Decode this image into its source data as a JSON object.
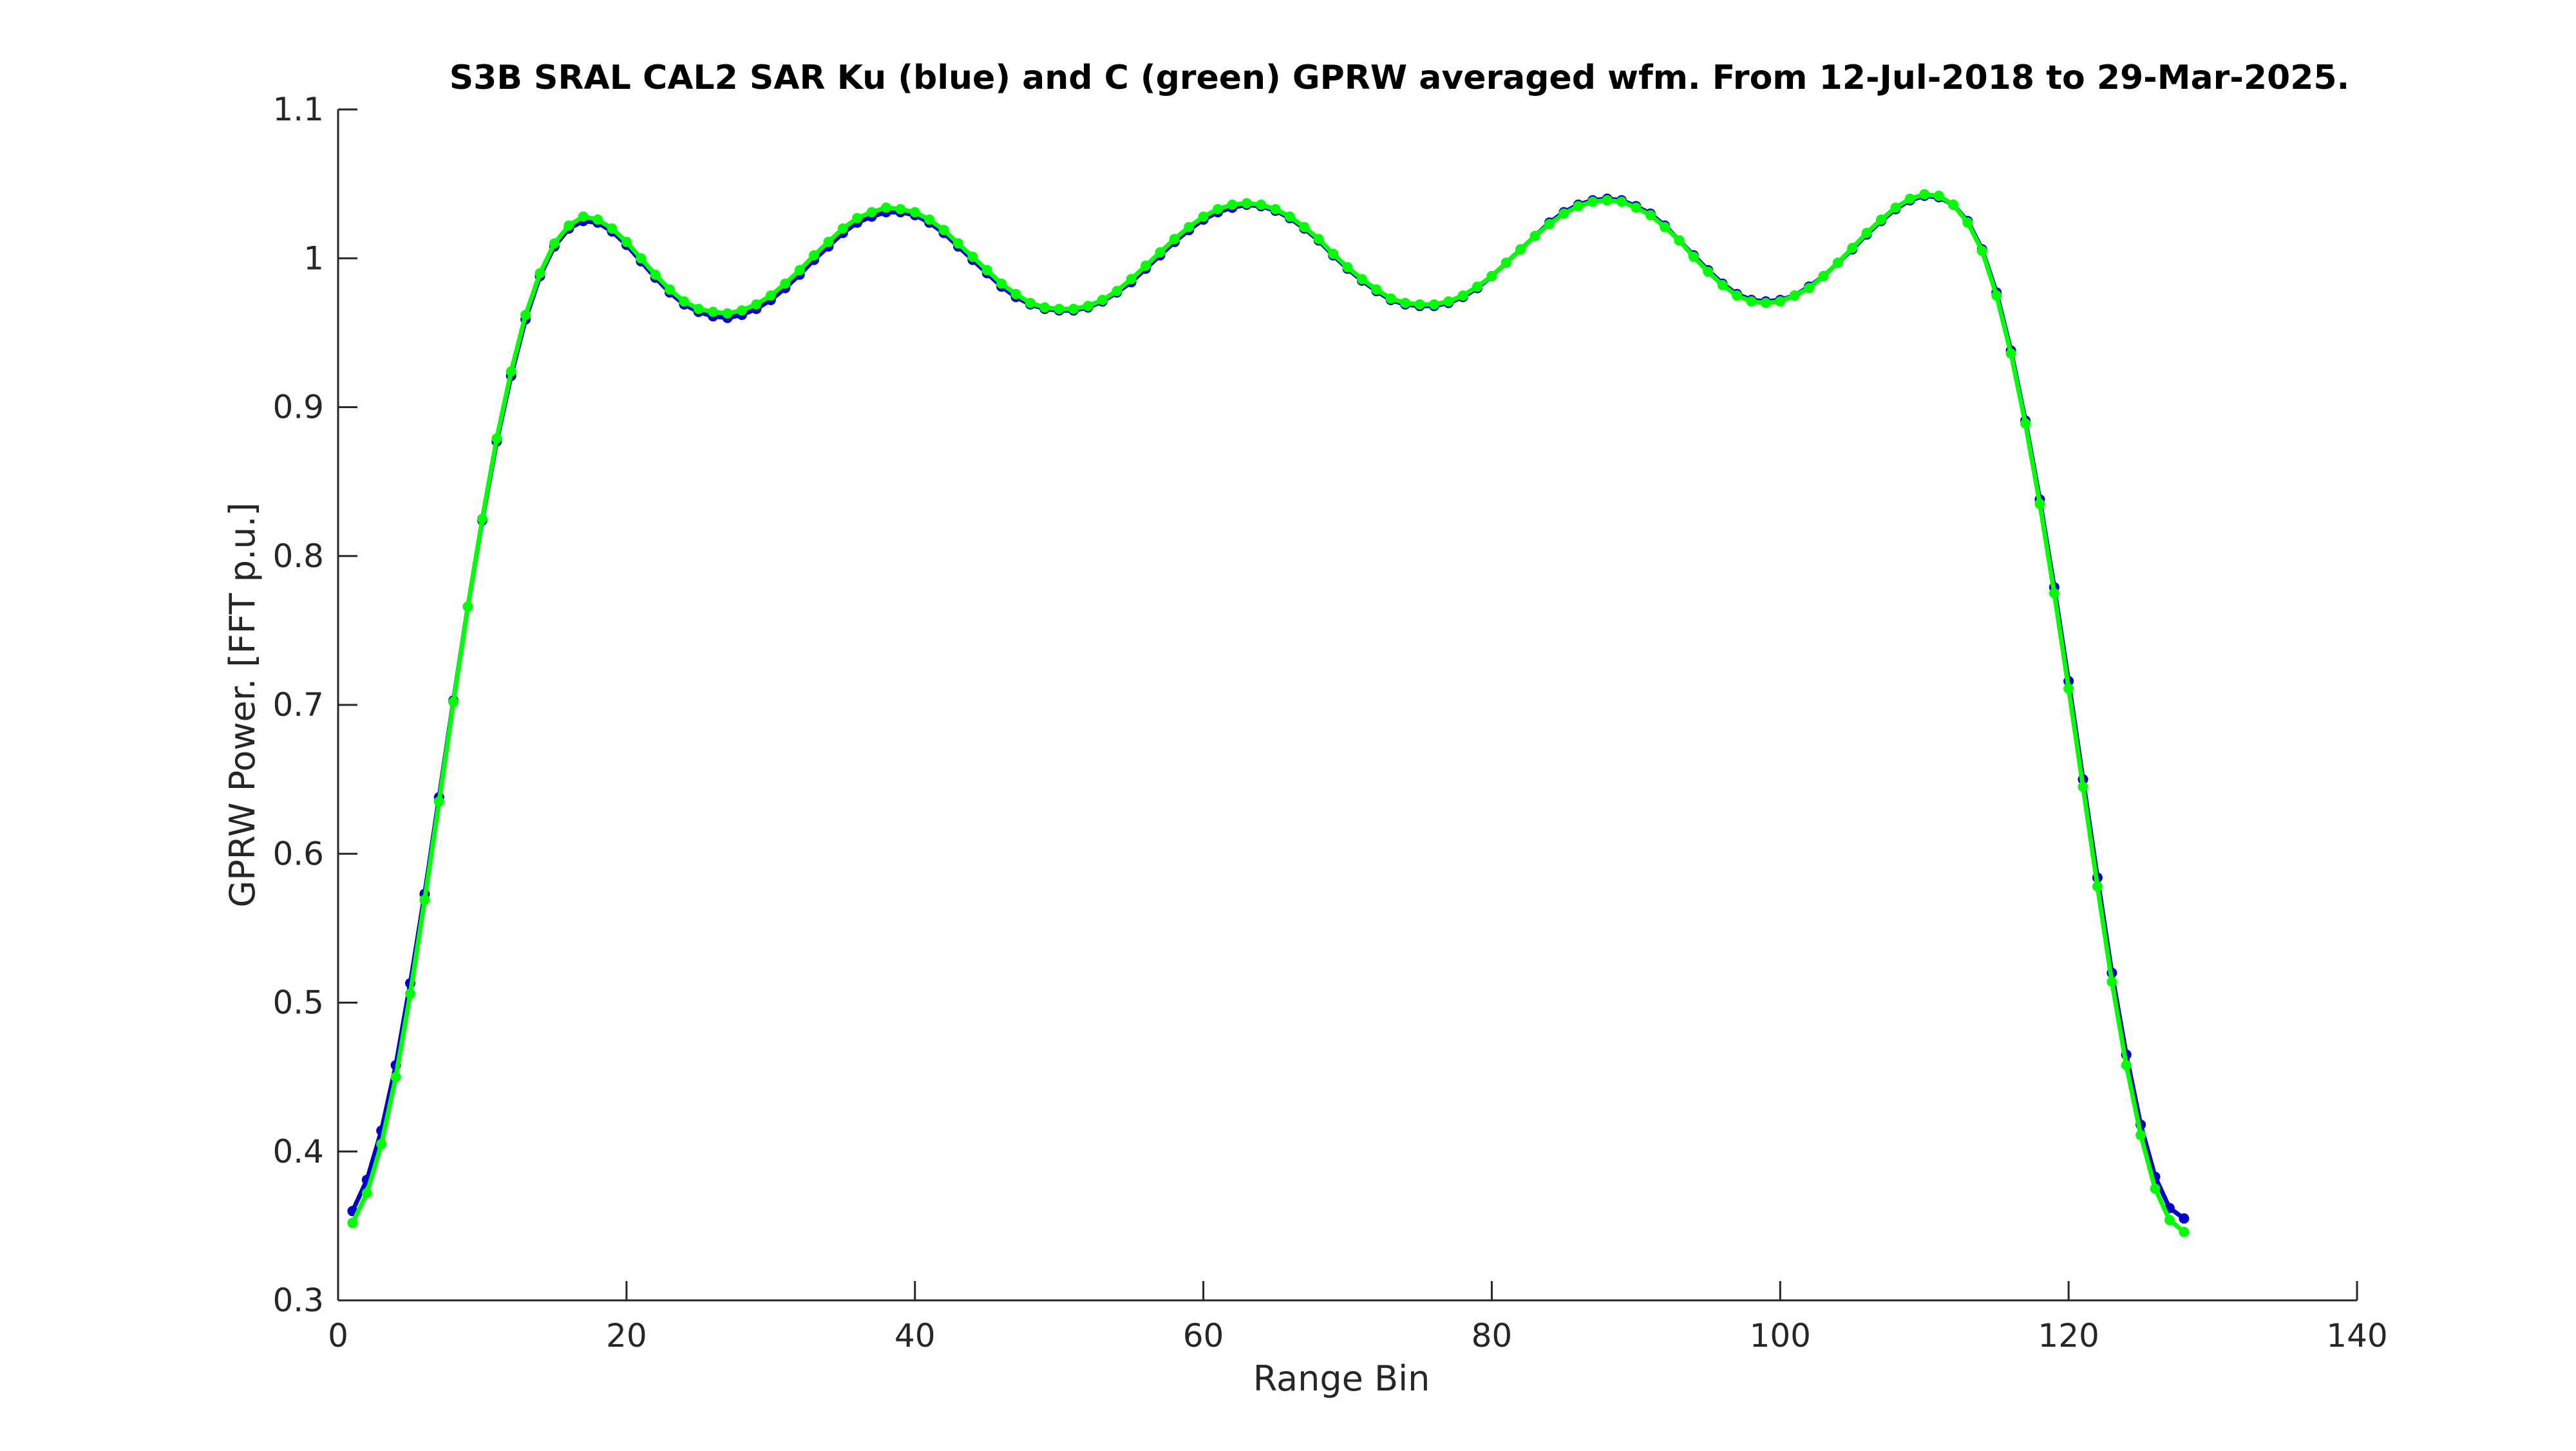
{
  "chart_data": {
    "type": "line",
    "title": "S3B SRAL CAL2 SAR Ku (blue) and C (green) GPRW averaged wfm. From 12-Jul-2018 to 29-Mar-2025.",
    "xlabel": "Range Bin",
    "ylabel": "GPRW Power. [FFT p.u.]",
    "xlim": [
      0,
      140
    ],
    "ylim": [
      0.3,
      1.1
    ],
    "xticks": [
      "0",
      "20",
      "40",
      "60",
      "80",
      "100",
      "120",
      "140"
    ],
    "yticks": [
      "0.3",
      "0.4",
      "0.5",
      "0.6",
      "0.7",
      "0.8",
      "0.9",
      "1",
      "1.1"
    ],
    "grid": false,
    "legend": "none",
    "x": [
      1,
      2,
      3,
      4,
      5,
      6,
      7,
      8,
      9,
      10,
      11,
      12,
      13,
      14,
      15,
      16,
      17,
      18,
      19,
      20,
      21,
      22,
      23,
      24,
      25,
      26,
      27,
      28,
      29,
      30,
      31,
      32,
      33,
      34,
      35,
      36,
      37,
      38,
      39,
      40,
      41,
      42,
      43,
      44,
      45,
      46,
      47,
      48,
      49,
      50,
      51,
      52,
      53,
      54,
      55,
      56,
      57,
      58,
      59,
      60,
      61,
      62,
      63,
      64,
      65,
      66,
      67,
      68,
      69,
      70,
      71,
      72,
      73,
      74,
      75,
      76,
      77,
      78,
      79,
      80,
      81,
      82,
      83,
      84,
      85,
      86,
      87,
      88,
      89,
      90,
      91,
      92,
      93,
      94,
      95,
      96,
      97,
      98,
      99,
      100,
      101,
      102,
      103,
      104,
      105,
      106,
      107,
      108,
      109,
      110,
      111,
      112,
      113,
      114,
      115,
      116,
      117,
      118,
      119,
      120,
      121,
      122,
      123,
      124,
      125,
      126,
      127,
      128
    ],
    "series": [
      {
        "name": "Ku",
        "color": "#0000cc",
        "values": [
          0.36,
          0.381,
          0.414,
          0.458,
          0.513,
          0.573,
          0.638,
          0.703,
          0.766,
          0.824,
          0.877,
          0.921,
          0.959,
          0.988,
          1.008,
          1.02,
          1.025,
          1.024,
          1.018,
          1.009,
          0.998,
          0.987,
          0.977,
          0.969,
          0.964,
          0.961,
          0.96,
          0.962,
          0.966,
          0.972,
          0.98,
          0.989,
          0.999,
          1.008,
          1.017,
          1.024,
          1.028,
          1.031,
          1.031,
          1.029,
          1.024,
          1.017,
          1.008,
          0.999,
          0.99,
          0.981,
          0.974,
          0.969,
          0.966,
          0.965,
          0.965,
          0.967,
          0.971,
          0.977,
          0.984,
          0.993,
          1.002,
          1.011,
          1.019,
          1.026,
          1.031,
          1.034,
          1.036,
          1.035,
          1.032,
          1.027,
          1.02,
          1.012,
          1.002,
          0.993,
          0.985,
          0.978,
          0.972,
          0.969,
          0.968,
          0.968,
          0.97,
          0.974,
          0.98,
          0.988,
          0.997,
          1.006,
          1.015,
          1.024,
          1.031,
          1.036,
          1.039,
          1.04,
          1.039,
          1.035,
          1.03,
          1.022,
          1.012,
          1.002,
          0.992,
          0.983,
          0.976,
          0.972,
          0.971,
          0.972,
          0.975,
          0.981,
          0.988,
          0.997,
          1.006,
          1.016,
          1.025,
          1.033,
          1.039,
          1.042,
          1.041,
          1.036,
          1.025,
          1.006,
          0.977,
          0.938,
          0.891,
          0.838,
          0.779,
          0.716,
          0.65,
          0.584,
          0.52,
          0.465,
          0.418,
          0.383,
          0.362,
          0.355
        ]
      },
      {
        "name": "C",
        "color": "#00ff00",
        "values": [
          0.352,
          0.372,
          0.405,
          0.45,
          0.506,
          0.569,
          0.635,
          0.702,
          0.766,
          0.825,
          0.879,
          0.924,
          0.962,
          0.99,
          1.01,
          1.022,
          1.028,
          1.026,
          1.02,
          1.011,
          1.0,
          0.989,
          0.979,
          0.971,
          0.966,
          0.964,
          0.963,
          0.965,
          0.969,
          0.975,
          0.983,
          0.992,
          1.002,
          1.011,
          1.02,
          1.027,
          1.031,
          1.034,
          1.033,
          1.031,
          1.026,
          1.019,
          1.01,
          1.001,
          0.992,
          0.983,
          0.976,
          0.97,
          0.967,
          0.966,
          0.966,
          0.968,
          0.972,
          0.978,
          0.986,
          0.995,
          1.004,
          1.013,
          1.021,
          1.028,
          1.033,
          1.036,
          1.037,
          1.036,
          1.033,
          1.028,
          1.021,
          1.013,
          1.003,
          0.994,
          0.986,
          0.979,
          0.973,
          0.97,
          0.969,
          0.969,
          0.971,
          0.975,
          0.981,
          0.988,
          0.997,
          1.006,
          1.015,
          1.023,
          1.03,
          1.035,
          1.038,
          1.039,
          1.038,
          1.034,
          1.029,
          1.021,
          1.012,
          1.001,
          0.991,
          0.982,
          0.975,
          0.971,
          0.97,
          0.971,
          0.975,
          0.98,
          0.988,
          0.997,
          1.007,
          1.017,
          1.026,
          1.034,
          1.04,
          1.043,
          1.042,
          1.036,
          1.024,
          1.005,
          0.975,
          0.936,
          0.889,
          0.835,
          0.775,
          0.711,
          0.645,
          0.578,
          0.514,
          0.458,
          0.411,
          0.375,
          0.354,
          0.346
        ]
      }
    ]
  }
}
